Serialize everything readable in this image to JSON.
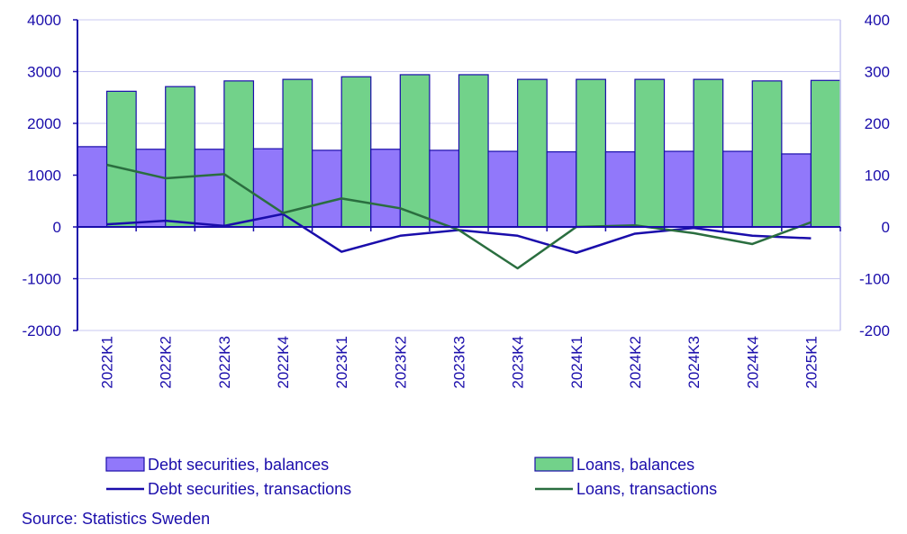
{
  "chart_data": {
    "type": "bar",
    "categories": [
      "2022K1",
      "2022K2",
      "2022K3",
      "2022K4",
      "2023K1",
      "2023K2",
      "2023K3",
      "2023K4",
      "2024K1",
      "2024K2",
      "2024K3",
      "2024K4",
      "2025K1"
    ],
    "left_axis": {
      "ylim": [
        -2000,
        4000
      ],
      "ticks": [
        "-2000",
        "-1000",
        "0",
        "1000",
        "2000",
        "3000",
        "4000"
      ]
    },
    "right_axis": {
      "ylim": [
        -200,
        400
      ],
      "ticks": [
        "-200",
        "-100",
        "0",
        "100",
        "200",
        "300",
        "400"
      ]
    },
    "grid": true,
    "series": [
      {
        "name": "Debt securities, balances",
        "type": "bar",
        "axis": "left",
        "color": "#9178fa",
        "values": [
          1550,
          1500,
          1500,
          1510,
          1480,
          1500,
          1480,
          1460,
          1450,
          1450,
          1460,
          1460,
          1410
        ]
      },
      {
        "name": "Loans, balances",
        "type": "bar",
        "axis": "left",
        "color": "#72d28a",
        "values": [
          2620,
          2710,
          2820,
          2850,
          2900,
          2940,
          2940,
          2850,
          2850,
          2850,
          2850,
          2820,
          2830
        ]
      },
      {
        "name": "Debt securities, transactions",
        "type": "line",
        "axis": "right",
        "color": "#1a0dab",
        "values": [
          5,
          12,
          2,
          25,
          -48,
          -17,
          -6,
          -17,
          -50,
          -13,
          -2,
          -17,
          -22
        ]
      },
      {
        "name": "Loans, transactions",
        "type": "line",
        "axis": "right",
        "color": "#2a6e3f",
        "values": [
          120,
          94,
          102,
          27,
          55,
          36,
          -6,
          -80,
          0,
          3,
          -12,
          -33,
          9
        ]
      }
    ],
    "legend_placement": "bottom"
  },
  "source": "Source: Statistics Sweden"
}
